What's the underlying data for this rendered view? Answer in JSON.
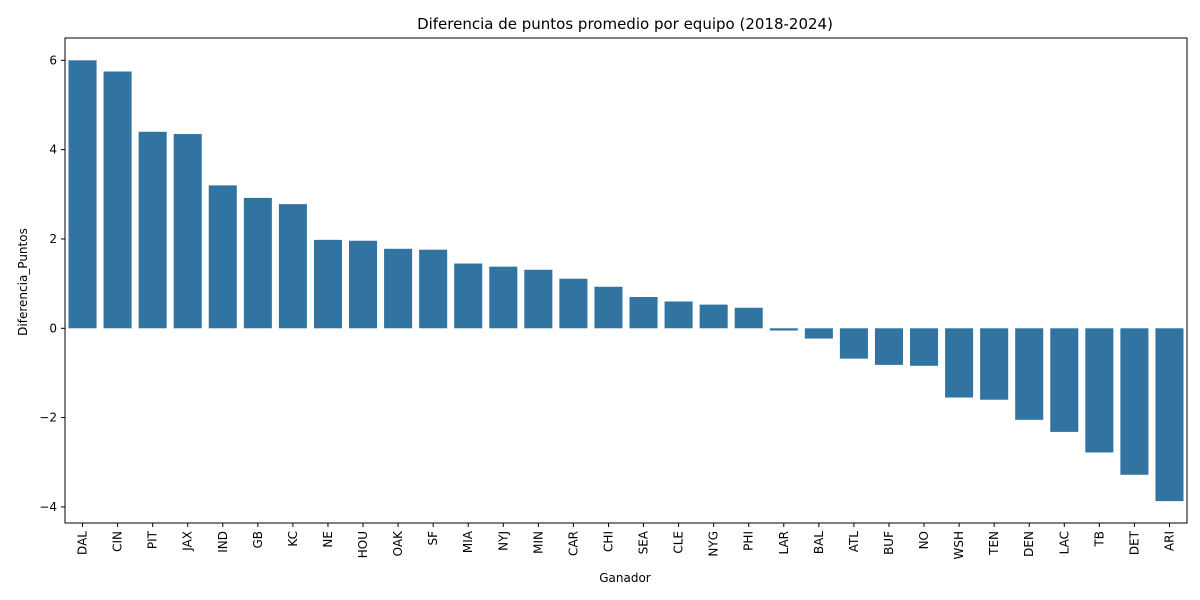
{
  "chart_data": {
    "type": "bar",
    "title": "Diferencia de puntos promedio por equipo (2018-2024)",
    "xlabel": "Ganador",
    "ylabel": "Diferencia_Puntos",
    "categories": [
      "DAL",
      "CIN",
      "PIT",
      "JAX",
      "IND",
      "GB",
      "KC",
      "NE",
      "HOU",
      "OAK",
      "SF",
      "MIA",
      "NYJ",
      "MIN",
      "CAR",
      "CHI",
      "SEA",
      "CLE",
      "NYG",
      "PHI",
      "LAR",
      "BAL",
      "ATL",
      "BUF",
      "NO",
      "WSH",
      "TEN",
      "DEN",
      "LAC",
      "TB",
      "DET",
      "ARI"
    ],
    "values": [
      6.0,
      5.75,
      4.4,
      4.35,
      3.2,
      2.92,
      2.78,
      1.98,
      1.96,
      1.78,
      1.76,
      1.45,
      1.38,
      1.31,
      1.11,
      0.93,
      0.7,
      0.6,
      0.53,
      0.46,
      -0.05,
      -0.23,
      -0.68,
      -0.82,
      -0.84,
      -1.55,
      -1.6,
      -2.05,
      -2.32,
      -2.78,
      -3.28,
      -3.87
    ],
    "yticks": [
      -4,
      -2,
      0,
      2,
      4,
      6
    ],
    "ylim": [
      -4.36,
      6.5
    ],
    "bar_color": "#3274a1",
    "grid": false,
    "legend": "none"
  }
}
